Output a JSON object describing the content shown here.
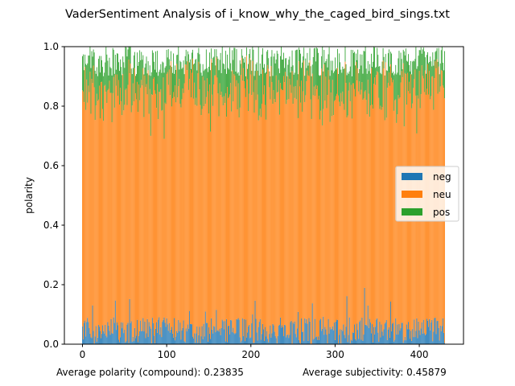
{
  "chart_data": {
    "type": "bar",
    "stacked": true,
    "title": "VaderSentiment Analysis of i_know_why_the_caged_bird_sings.txt",
    "xlabel": "",
    "ylabel": "polarity",
    "xlim": [
      -21.5,
      452.5
    ],
    "ylim": [
      0,
      1
    ],
    "xticks": [
      0,
      100,
      200,
      300,
      400
    ],
    "yticks": [
      0.0,
      0.2,
      0.4,
      0.6,
      0.8,
      1.0
    ],
    "xtick_labels": [
      "0",
      "100",
      "200",
      "300",
      "400"
    ],
    "ytick_labels": [
      "0.0",
      "0.2",
      "0.4",
      "0.6",
      "0.8",
      "1.0"
    ],
    "n_bars": 431,
    "grid": false,
    "legend_position": "center-right",
    "series": [
      {
        "name": "neg",
        "color": "#1f77b4",
        "mean": 0.046
      },
      {
        "name": "neu",
        "color": "#ff7f0e",
        "mean": 0.81
      },
      {
        "name": "pos",
        "color": "#2ca02c",
        "mean": 0.096
      }
    ],
    "footer": {
      "left": "Average polarity (compound): 0.23835",
      "right": "Average subjectivity: 0.45879"
    }
  }
}
